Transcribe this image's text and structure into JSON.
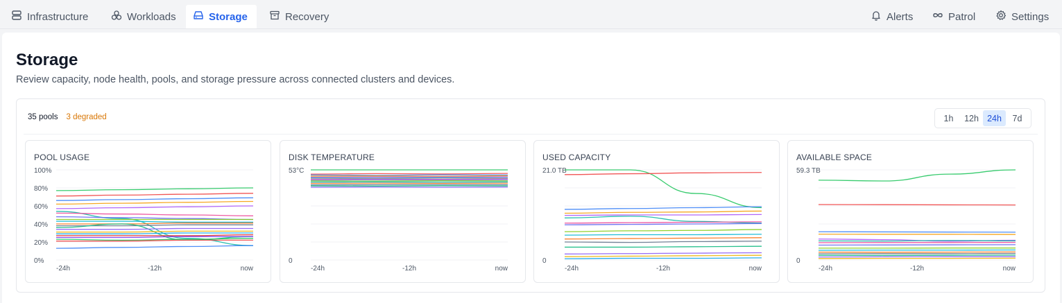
{
  "nav": {
    "left_tabs": [
      {
        "label": "Infrastructure",
        "icon": "server-icon",
        "active": false
      },
      {
        "label": "Workloads",
        "icon": "workloads-icon",
        "active": false
      },
      {
        "label": "Storage",
        "icon": "storage-icon",
        "active": true
      },
      {
        "label": "Recovery",
        "icon": "archive-icon",
        "active": false
      }
    ],
    "right_tabs": [
      {
        "label": "Alerts",
        "icon": "bell-icon"
      },
      {
        "label": "Patrol",
        "icon": "infinity-icon"
      },
      {
        "label": "Settings",
        "icon": "gear-icon"
      }
    ]
  },
  "page": {
    "title": "Storage",
    "subtitle": "Review capacity, node health, pools, and storage pressure across connected clusters and devices."
  },
  "summary": {
    "pools": "35 pools",
    "degraded": "3 degraded"
  },
  "range": {
    "options": [
      "1h",
      "12h",
      "24h",
      "7d"
    ],
    "selected": "24h"
  },
  "colors": {
    "accent": "#2563eb",
    "warning": "#d97706",
    "palette": [
      "#22c55e",
      "#ef4444",
      "#3b82f6",
      "#f59e0b",
      "#a855f7",
      "#14b8a6",
      "#ec4899",
      "#6366f1",
      "#84cc16",
      "#06b6d4",
      "#f97316",
      "#64748b",
      "#10b981",
      "#8b5cf6",
      "#eab308",
      "#0ea5e9",
      "#dc2626",
      "#7c3aed"
    ]
  },
  "chart_data": [
    {
      "type": "line",
      "title": "POOL USAGE",
      "y_tick_labels": [
        "100%",
        "80%",
        "60%",
        "40%",
        "20%",
        "0%"
      ],
      "x_tick_labels": [
        "-24h",
        "-12h",
        "now"
      ],
      "ylim": [
        0,
        100
      ],
      "unit": "%",
      "series": [
        {
          "values": [
            77,
            78,
            79,
            80
          ]
        },
        {
          "values": [
            71,
            72,
            73,
            74
          ]
        },
        {
          "values": [
            66,
            67,
            68,
            69
          ]
        },
        {
          "values": [
            62,
            63,
            64,
            65
          ]
        },
        {
          "values": [
            57,
            58,
            59,
            60
          ]
        },
        {
          "values": [
            54,
            46,
            24,
            16
          ]
        },
        {
          "values": [
            52,
            51,
            50,
            49
          ]
        },
        {
          "values": [
            48,
            47,
            46,
            45
          ]
        },
        {
          "values": [
            45,
            45,
            45,
            45
          ]
        },
        {
          "values": [
            43,
            43,
            42,
            42
          ]
        },
        {
          "values": [
            40,
            40,
            41,
            41
          ]
        },
        {
          "values": [
            38,
            38,
            39,
            39
          ]
        },
        {
          "values": [
            36,
            40,
            22,
            26
          ]
        },
        {
          "values": [
            34,
            34,
            35,
            35
          ]
        },
        {
          "values": [
            31,
            31,
            32,
            32
          ]
        },
        {
          "values": [
            29,
            29,
            30,
            30
          ]
        },
        {
          "values": [
            27,
            27,
            27,
            28
          ]
        },
        {
          "values": [
            25,
            25,
            26,
            26
          ]
        },
        {
          "values": [
            23,
            22,
            23,
            24
          ]
        },
        {
          "values": [
            21,
            21,
            22,
            22
          ]
        },
        {
          "values": [
            13,
            14,
            15,
            16
          ]
        }
      ]
    },
    {
      "type": "line",
      "title": "DISK TEMPERATURE",
      "y_tick_labels": [
        "53°C",
        "0"
      ],
      "x_tick_labels": [
        "-24h",
        "-12h",
        "now"
      ],
      "ylim": [
        0,
        53
      ],
      "unit": "°C",
      "series": [
        {
          "values": [
            53,
            53,
            53,
            53
          ]
        },
        {
          "values": [
            50.5,
            50.8,
            50.6,
            50.9
          ]
        },
        {
          "values": [
            50,
            49.8,
            50.1,
            50
          ]
        },
        {
          "values": [
            49.3,
            49.4,
            49.2,
            49.5
          ]
        },
        {
          "values": [
            48.7,
            48.8,
            48.8,
            48.9
          ]
        },
        {
          "values": [
            48.2,
            48.1,
            48.3,
            48.2
          ]
        },
        {
          "values": [
            47.6,
            47.7,
            47.6,
            47.8
          ]
        },
        {
          "values": [
            47,
            47.2,
            47.1,
            47.2
          ]
        },
        {
          "values": [
            46.5,
            46.4,
            46.6,
            46.5
          ]
        },
        {
          "values": [
            45.8,
            45.9,
            45.8,
            45.9
          ]
        },
        {
          "values": [
            45.1,
            45.2,
            45.1,
            45.2
          ]
        },
        {
          "values": [
            44.2,
            44.3,
            44.4,
            44.3
          ]
        },
        {
          "values": [
            43.6,
            43.5,
            43.7,
            43.6
          ]
        },
        {
          "values": [
            42.8,
            42.9,
            42.8,
            42.9
          ]
        }
      ]
    },
    {
      "type": "line",
      "title": "USED CAPACITY",
      "y_tick_labels": [
        "21.0 TB",
        "0"
      ],
      "x_tick_labels": [
        "-24h",
        "-12h",
        "now"
      ],
      "ylim": [
        0,
        21.0
      ],
      "unit": "TB",
      "series": [
        {
          "values": [
            21.0,
            21.0,
            15.5,
            12.2
          ]
        },
        {
          "values": [
            19.9,
            20.1,
            20.3,
            20.4
          ]
        },
        {
          "values": [
            11.8,
            12.0,
            12.2,
            12.4
          ]
        },
        {
          "values": [
            10.9,
            11.1,
            11.2,
            11.4
          ]
        },
        {
          "values": [
            10.4,
            10.5,
            10.5,
            10.6
          ]
        },
        {
          "values": [
            9.8,
            10.2,
            9.0,
            8.6
          ]
        },
        {
          "values": [
            8.6,
            8.7,
            8.8,
            8.9
          ]
        },
        {
          "values": [
            8.2,
            8.3,
            8.4,
            8.5
          ]
        },
        {
          "values": [
            6.6,
            6.8,
            6.9,
            7.1
          ]
        },
        {
          "values": [
            5.8,
            5.9,
            5.9,
            6.0
          ]
        },
        {
          "values": [
            4.9,
            5.0,
            5.1,
            5.2
          ]
        },
        {
          "values": [
            4.2,
            4.1,
            4.3,
            4.4
          ]
        },
        {
          "values": [
            3.0,
            3.0,
            3.1,
            3.2
          ]
        },
        {
          "values": [
            1.4,
            1.5,
            1.6,
            1.7
          ]
        },
        {
          "values": [
            0.8,
            0.9,
            1.0,
            1.1
          ]
        },
        {
          "values": [
            0.3,
            0.4,
            0.4,
            0.5
          ]
        }
      ]
    },
    {
      "type": "line",
      "title": "AVAILABLE SPACE",
      "y_tick_labels": [
        "59.3 TB",
        "0"
      ],
      "x_tick_labels": [
        "-24h",
        "-12h",
        "now"
      ],
      "ylim": [
        0,
        59.3
      ],
      "unit": "TB",
      "series": [
        {
          "values": [
            52.5,
            52.0,
            56.5,
            59.3
          ]
        },
        {
          "values": [
            36.5,
            36.4,
            36.3,
            36.2
          ]
        },
        {
          "values": [
            18.6,
            18.5,
            18.4,
            18.3
          ]
        },
        {
          "values": [
            17.0,
            16.9,
            16.9,
            16.8
          ]
        },
        {
          "values": [
            13.8,
            13.4,
            12.4,
            13.0
          ]
        },
        {
          "values": [
            12.6,
            12.5,
            12.9,
            12.6
          ]
        },
        {
          "values": [
            11.4,
            11.5,
            11.5,
            11.6
          ]
        },
        {
          "values": [
            9.8,
            9.9,
            10.0,
            10.1
          ]
        },
        {
          "values": [
            7.8,
            7.8,
            7.9,
            7.9
          ]
        },
        {
          "values": [
            6.4,
            6.5,
            6.5,
            6.6
          ]
        },
        {
          "values": [
            5.2,
            5.1,
            5.2,
            5.3
          ]
        },
        {
          "values": [
            4.1,
            4.2,
            4.2,
            4.3
          ]
        },
        {
          "values": [
            3.1,
            3.0,
            3.1,
            3.2
          ]
        },
        {
          "values": [
            2.0,
            2.1,
            2.2,
            2.2
          ]
        },
        {
          "values": [
            1.0,
            1.1,
            1.1,
            1.2
          ]
        }
      ]
    }
  ]
}
